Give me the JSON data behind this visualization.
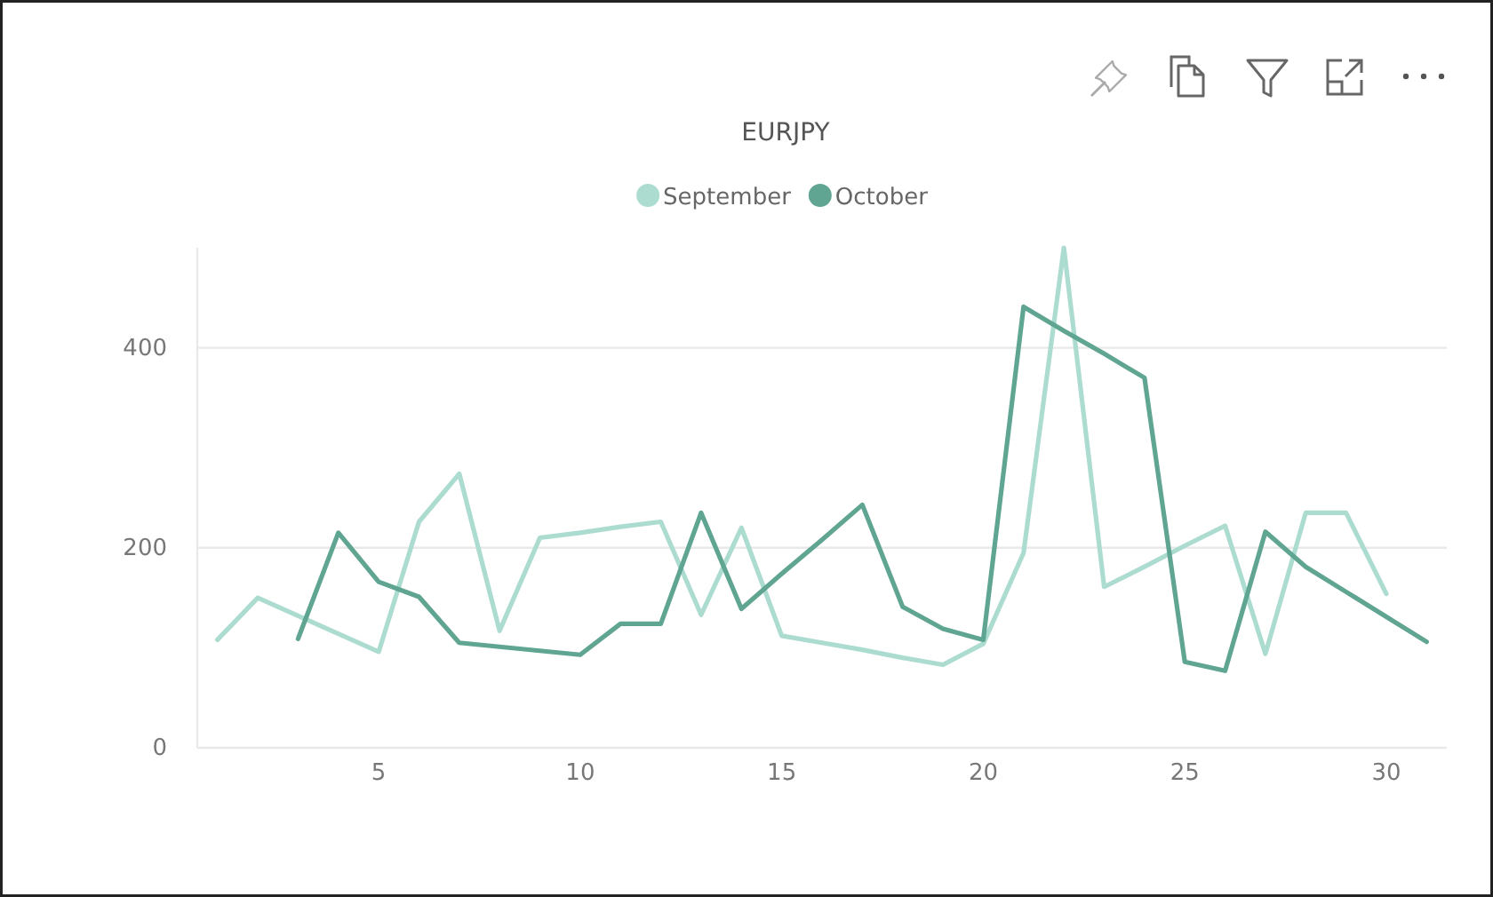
{
  "chart_data": {
    "type": "line",
    "title": "EURJPY",
    "x": [
      1,
      2,
      3,
      4,
      5,
      6,
      7,
      8,
      9,
      10,
      11,
      12,
      13,
      14,
      15,
      16,
      17,
      18,
      19,
      20,
      21,
      22,
      23,
      24,
      25,
      26,
      27,
      28,
      29,
      30,
      31
    ],
    "series": [
      {
        "name": "September",
        "color": "#acdbd0",
        "values": [
          108,
          150,
          132,
          114,
          96,
          226,
          274,
          117,
          210,
          215,
          221,
          226,
          133,
          220,
          112,
          105,
          98,
          90,
          83,
          104,
          195,
          500,
          161,
          181,
          202,
          222,
          94,
          235,
          235,
          154,
          null
        ]
      },
      {
        "name": "October",
        "color": "#5fa592",
        "values": [
          null,
          null,
          109,
          215,
          166,
          151,
          105,
          101,
          97,
          93,
          124,
          124,
          235,
          139,
          174,
          208,
          243,
          141,
          119,
          108,
          441,
          417,
          394,
          370,
          86,
          77,
          216,
          181,
          156,
          131,
          106
        ]
      }
    ],
    "xlim": [
      0.5,
      31.5
    ],
    "xticks": [
      5,
      10,
      15,
      20,
      25,
      30
    ],
    "ylim": [
      0,
      500
    ],
    "yticks": [
      0,
      200,
      400
    ],
    "grid": "y",
    "legend": "top"
  }
}
